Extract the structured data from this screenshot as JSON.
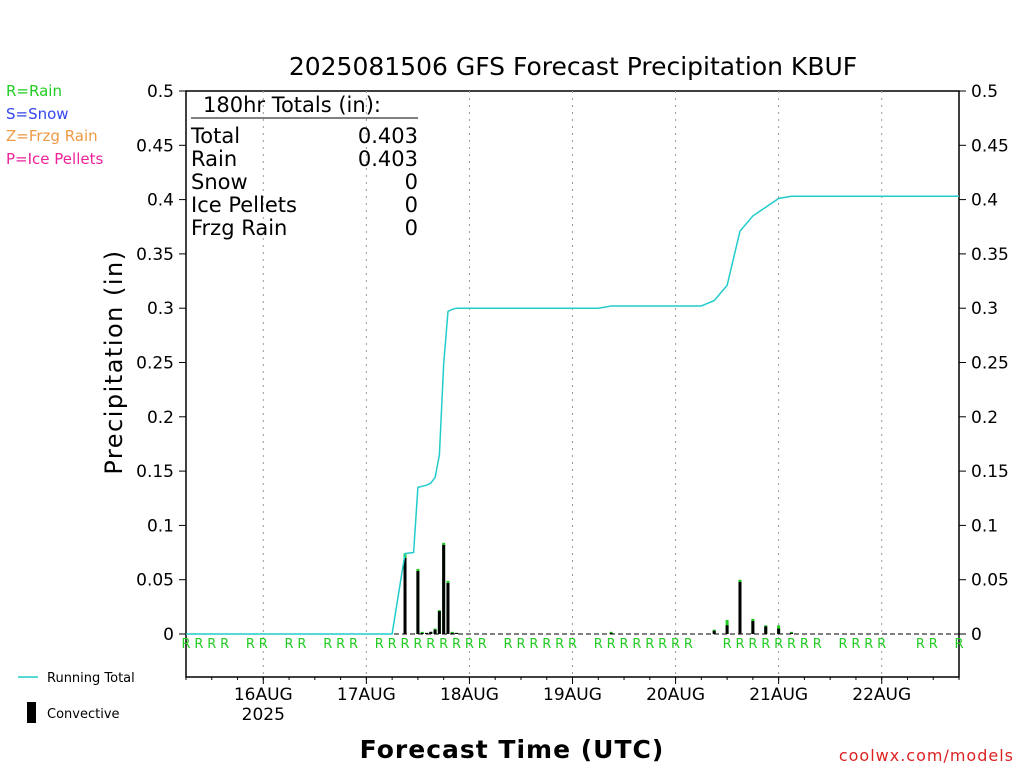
{
  "chart_data": {
    "type": "bar",
    "title": "2025081506 GFS Forecast Precipitation KBUF",
    "xlabel": "Forecast Time (UTC)",
    "ylabel": "Precipitation (in)",
    "ylim": [
      0,
      0.5
    ],
    "y_ticks": [
      "0",
      "0.05",
      "0.1",
      "0.15",
      "0.2",
      "0.25",
      "0.3",
      "0.35",
      "0.4",
      "0.45",
      "0.5"
    ],
    "y_tick_values": [
      0,
      0.05,
      0.1,
      0.15,
      0.2,
      0.25,
      0.3,
      0.35,
      0.4,
      0.45,
      0.5
    ],
    "x_range": [
      "2025-08-15 06Z",
      "2025-08-22 18Z"
    ],
    "x_tick_labels": [
      {
        "label": "16AUG",
        "sub": "2025",
        "time": "2025-08-16 00Z"
      },
      {
        "label": "17AUG",
        "sub": "",
        "time": "2025-08-17 00Z"
      },
      {
        "label": "18AUG",
        "sub": "",
        "time": "2025-08-18 00Z"
      },
      {
        "label": "19AUG",
        "sub": "",
        "time": "2025-08-19 00Z"
      },
      {
        "label": "20AUG",
        "sub": "",
        "time": "2025-08-20 00Z"
      },
      {
        "label": "21AUG",
        "sub": "",
        "time": "2025-08-21 00Z"
      },
      {
        "label": "22AUG",
        "sub": "",
        "time": "2025-08-22 00Z"
      }
    ],
    "grid": "vertical dotted at day boundaries",
    "legend_placement": "left",
    "ptype_legend": [
      {
        "label": "R=Rain",
        "color": "#22cc22"
      },
      {
        "label": "S=Snow",
        "color": "#3344ee"
      },
      {
        "label": "Z=Frzg Rain",
        "color": "#ee9944"
      },
      {
        "label": "P=Ice Pellets",
        "color": "#ee2299"
      }
    ],
    "series_key": [
      {
        "name": "Running Total",
        "color": "#22cccc"
      },
      {
        "name": "Convective",
        "color": "#000000"
      }
    ],
    "totals": {
      "heading": "180hr Totals (in):",
      "rows": [
        {
          "label": "Total",
          "value": "0.403"
        },
        {
          "label": "Rain",
          "value": "0.403"
        },
        {
          "label": "Snow",
          "value": "0"
        },
        {
          "label": "Ice Pellets",
          "value": "0"
        },
        {
          "label": "Frzg Rain",
          "value": "0"
        }
      ]
    },
    "bars": [
      {
        "time": "2025-08-17 09Z",
        "total": 0.074,
        "convective": 0.07
      },
      {
        "time": "2025-08-17 12Z",
        "total": 0.06,
        "convective": 0.058
      },
      {
        "time": "2025-08-17 13Z",
        "total": 0.002,
        "convective": 0.001
      },
      {
        "time": "2025-08-17 14Z",
        "total": 0.001,
        "convective": 0.001
      },
      {
        "time": "2025-08-17 15Z",
        "total": 0.002,
        "convective": 0.002
      },
      {
        "time": "2025-08-17 16Z",
        "total": 0.005,
        "convective": 0.004
      },
      {
        "time": "2025-08-17 17Z",
        "total": 0.022,
        "convective": 0.021
      },
      {
        "time": "2025-08-17 18Z",
        "total": 0.084,
        "convective": 0.082
      },
      {
        "time": "2025-08-17 19Z",
        "total": 0.049,
        "convective": 0.047
      },
      {
        "time": "2025-08-17 20Z",
        "total": 0.002,
        "convective": 0.001
      },
      {
        "time": "2025-08-17 21Z",
        "total": 0.001,
        "convective": 0.001
      },
      {
        "time": "2025-08-19 09Z",
        "total": 0.002,
        "convective": 0.001
      },
      {
        "time": "2025-08-20 09Z",
        "total": 0.004,
        "convective": 0.003
      },
      {
        "time": "2025-08-20 12Z",
        "total": 0.013,
        "convective": 0.008
      },
      {
        "time": "2025-08-20 15Z",
        "total": 0.05,
        "convective": 0.048
      },
      {
        "time": "2025-08-20 18Z",
        "total": 0.014,
        "convective": 0.012
      },
      {
        "time": "2025-08-20 21Z",
        "total": 0.008,
        "convective": 0.007
      },
      {
        "time": "2025-08-21 00Z",
        "total": 0.008,
        "convective": 0.005
      },
      {
        "time": "2025-08-21 03Z",
        "total": 0.002,
        "convective": 0.001
      }
    ],
    "running_total": [
      {
        "time": "2025-08-15 06Z",
        "value": 0
      },
      {
        "time": "2025-08-17 06Z",
        "value": 0
      },
      {
        "time": "2025-08-17 09Z",
        "value": 0.074
      },
      {
        "time": "2025-08-17 11Z",
        "value": 0.075
      },
      {
        "time": "2025-08-17 12Z",
        "value": 0.135
      },
      {
        "time": "2025-08-17 13Z",
        "value": 0.136
      },
      {
        "time": "2025-08-17 14Z",
        "value": 0.137
      },
      {
        "time": "2025-08-17 15Z",
        "value": 0.139
      },
      {
        "time": "2025-08-17 16Z",
        "value": 0.144
      },
      {
        "time": "2025-08-17 17Z",
        "value": 0.165
      },
      {
        "time": "2025-08-17 18Z",
        "value": 0.249
      },
      {
        "time": "2025-08-17 19Z",
        "value": 0.297
      },
      {
        "time": "2025-08-17 20Z",
        "value": 0.299
      },
      {
        "time": "2025-08-17 21Z",
        "value": 0.3
      },
      {
        "time": "2025-08-19 06Z",
        "value": 0.3
      },
      {
        "time": "2025-08-19 09Z",
        "value": 0.302
      },
      {
        "time": "2025-08-20 06Z",
        "value": 0.302
      },
      {
        "time": "2025-08-20 09Z",
        "value": 0.307
      },
      {
        "time": "2025-08-20 12Z",
        "value": 0.321
      },
      {
        "time": "2025-08-20 15Z",
        "value": 0.371
      },
      {
        "time": "2025-08-20 18Z",
        "value": 0.385
      },
      {
        "time": "2025-08-20 21Z",
        "value": 0.393
      },
      {
        "time": "2025-08-21 00Z",
        "value": 0.401
      },
      {
        "time": "2025-08-21 03Z",
        "value": 0.403
      },
      {
        "time": "2025-08-22 18Z",
        "value": 0.403
      }
    ],
    "ptype_marks": [
      {
        "time": "2025-08-15 06Z",
        "type": "R"
      },
      {
        "time": "2025-08-15 09Z",
        "type": "R"
      },
      {
        "time": "2025-08-15 12Z",
        "type": "R"
      },
      {
        "time": "2025-08-15 15Z",
        "type": "R"
      },
      {
        "time": "2025-08-15 21Z",
        "type": "R"
      },
      {
        "time": "2025-08-16 00Z",
        "type": "R"
      },
      {
        "time": "2025-08-16 06Z",
        "type": "R"
      },
      {
        "time": "2025-08-16 09Z",
        "type": "R"
      },
      {
        "time": "2025-08-16 15Z",
        "type": "R"
      },
      {
        "time": "2025-08-16 18Z",
        "type": "R"
      },
      {
        "time": "2025-08-16 21Z",
        "type": "R"
      },
      {
        "time": "2025-08-17 03Z",
        "type": "R"
      },
      {
        "time": "2025-08-17 06Z",
        "type": "R"
      },
      {
        "time": "2025-08-17 09Z",
        "type": "R"
      },
      {
        "time": "2025-08-17 12Z",
        "type": "R"
      },
      {
        "time": "2025-08-17 15Z",
        "type": "R"
      },
      {
        "time": "2025-08-17 18Z",
        "type": "R"
      },
      {
        "time": "2025-08-17 21Z",
        "type": "R"
      },
      {
        "time": "2025-08-18 00Z",
        "type": "R"
      },
      {
        "time": "2025-08-18 03Z",
        "type": "R"
      },
      {
        "time": "2025-08-18 09Z",
        "type": "R"
      },
      {
        "time": "2025-08-18 12Z",
        "type": "R"
      },
      {
        "time": "2025-08-18 15Z",
        "type": "R"
      },
      {
        "time": "2025-08-18 18Z",
        "type": "R"
      },
      {
        "time": "2025-08-18 21Z",
        "type": "R"
      },
      {
        "time": "2025-08-19 00Z",
        "type": "R"
      },
      {
        "time": "2025-08-19 06Z",
        "type": "R"
      },
      {
        "time": "2025-08-19 09Z",
        "type": "R"
      },
      {
        "time": "2025-08-19 12Z",
        "type": "R"
      },
      {
        "time": "2025-08-19 15Z",
        "type": "R"
      },
      {
        "time": "2025-08-19 18Z",
        "type": "R"
      },
      {
        "time": "2025-08-19 21Z",
        "type": "R"
      },
      {
        "time": "2025-08-20 00Z",
        "type": "R"
      },
      {
        "time": "2025-08-20 03Z",
        "type": "R"
      },
      {
        "time": "2025-08-20 12Z",
        "type": "R"
      },
      {
        "time": "2025-08-20 15Z",
        "type": "R"
      },
      {
        "time": "2025-08-20 18Z",
        "type": "R"
      },
      {
        "time": "2025-08-20 21Z",
        "type": "R"
      },
      {
        "time": "2025-08-21 00Z",
        "type": "R"
      },
      {
        "time": "2025-08-21 03Z",
        "type": "R"
      },
      {
        "time": "2025-08-21 06Z",
        "type": "R"
      },
      {
        "time": "2025-08-21 09Z",
        "type": "R"
      },
      {
        "time": "2025-08-21 15Z",
        "type": "R"
      },
      {
        "time": "2025-08-21 18Z",
        "type": "R"
      },
      {
        "time": "2025-08-21 21Z",
        "type": "R"
      },
      {
        "time": "2025-08-22 00Z",
        "type": "R"
      },
      {
        "time": "2025-08-22 09Z",
        "type": "R"
      },
      {
        "time": "2025-08-22 12Z",
        "type": "R"
      },
      {
        "time": "2025-08-22 18Z",
        "type": "R"
      }
    ],
    "colors": {
      "running_total": "#22cccc",
      "bar_total": "#22cc22",
      "bar_convective": "#000000",
      "rain_mark": "#22cc22",
      "credit": "#dd2222"
    },
    "credit": "coolwx.com/models"
  }
}
